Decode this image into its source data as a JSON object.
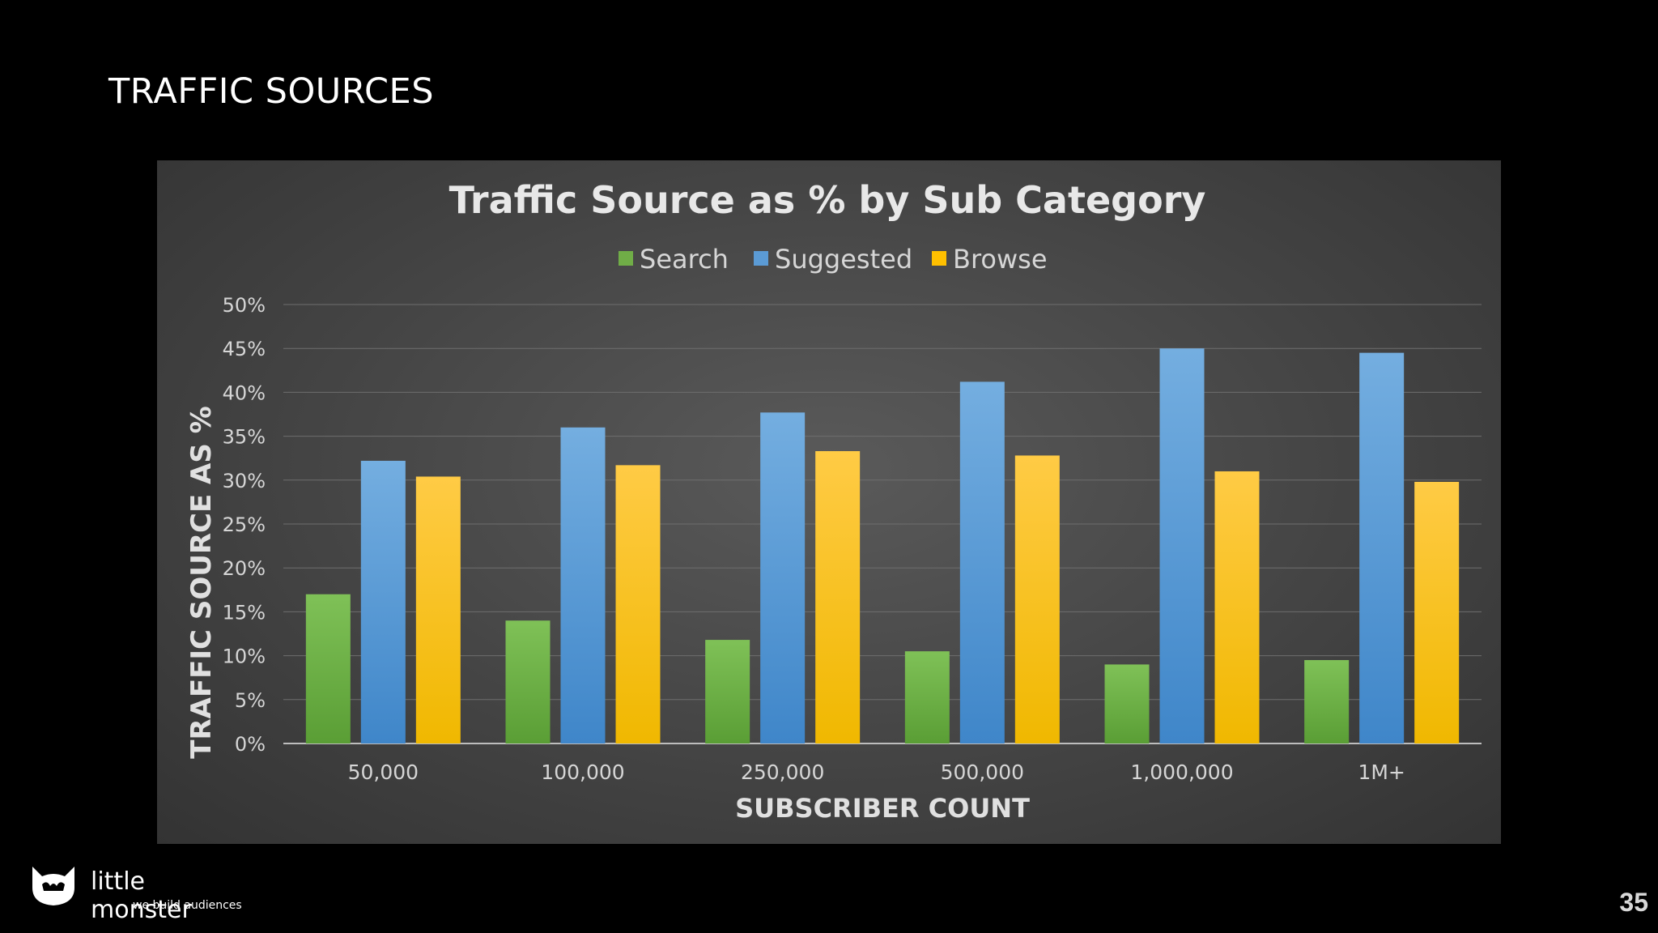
{
  "slide": {
    "title": "TRAFFIC SOURCES",
    "page_number": "35"
  },
  "brand": {
    "name": "little monster",
    "tagline": "we build audiences",
    "logo_icon": "monster-cat-icon"
  },
  "chart_data": {
    "type": "bar",
    "title": "Traffic Source as % by Sub Category",
    "xlabel": "SUBSCRIBER COUNT",
    "ylabel": "TRAFFIC SOURCE AS %",
    "categories": [
      "50,000",
      "100,000",
      "250,000",
      "500,000",
      "1,000,000",
      "1M+"
    ],
    "series": [
      {
        "name": "Search",
        "color": "#70ad47",
        "values": [
          17,
          14,
          11.8,
          10.5,
          9,
          9.5
        ]
      },
      {
        "name": "Suggested",
        "color": "#5b9bd5",
        "values": [
          32.2,
          36,
          37.7,
          41.2,
          45,
          44.5
        ]
      },
      {
        "name": "Browse",
        "color": "#ffc000",
        "values": [
          30.4,
          31.7,
          33.3,
          32.8,
          31,
          29.8
        ]
      }
    ],
    "ylim": [
      0,
      50
    ],
    "yticks": [
      "0%",
      "5%",
      "10%",
      "15%",
      "20%",
      "25%",
      "30%",
      "35%",
      "40%",
      "45%",
      "50%"
    ],
    "grid": true,
    "legend_position": "top-center"
  }
}
